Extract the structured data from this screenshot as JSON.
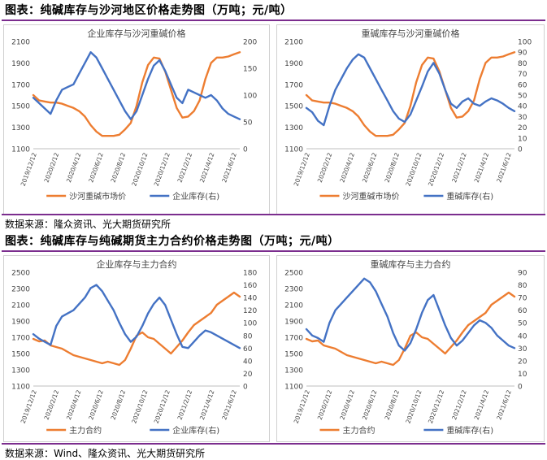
{
  "sections": [
    {
      "title": "图表：纯碱库存与沙河地区价格走势图（万吨；元/吨）",
      "source": "数据来源：隆众资讯、光大期货研究所"
    },
    {
      "title": "图表：纯碱库存与纯碱期货主力合约价格走势图（万吨；元/吨）",
      "source": "数据来源：Wind、隆众资讯、光大期货研究所"
    }
  ],
  "colors": {
    "orange": "#ED7D31",
    "blue": "#4472C4",
    "rule": "#7b2d8e"
  },
  "chart_data": [
    {
      "type": "line",
      "title": "企业库存与沙河重碱价格",
      "x_ticks": [
        "2019/12/12",
        "2020/2/12",
        "2020/4/12",
        "2020/6/12",
        "2020/8/12",
        "2020/10/12",
        "2020/12/12",
        "2021/2/12",
        "2021/4/12",
        "2021/6/12"
      ],
      "left_axis": {
        "min": 1100,
        "max": 2100,
        "ticks": [
          "1100",
          "1300",
          "1500",
          "1700",
          "1900",
          "2100"
        ]
      },
      "right_axis": {
        "min": 0,
        "max": 200,
        "ticks": [
          "0",
          "50",
          "100",
          "150",
          "200"
        ]
      },
      "series": [
        {
          "name": "沙河重碱市场价",
          "axis": "left",
          "color": "#ED7D31",
          "values": [
            1600,
            1550,
            1540,
            1530,
            1530,
            1520,
            1500,
            1480,
            1450,
            1400,
            1320,
            1260,
            1220,
            1220,
            1220,
            1230,
            1280,
            1340,
            1500,
            1720,
            1880,
            1950,
            1940,
            1820,
            1650,
            1480,
            1390,
            1400,
            1450,
            1550,
            1750,
            1900,
            1950,
            1950,
            1960,
            1980,
            2000
          ]
        },
        {
          "name": "企业库存(右)",
          "axis": "right",
          "color": "#4472C4",
          "values": [
            95,
            85,
            75,
            65,
            90,
            110,
            115,
            120,
            140,
            160,
            180,
            170,
            150,
            130,
            110,
            90,
            70,
            55,
            70,
            100,
            130,
            155,
            165,
            145,
            120,
            95,
            85,
            110,
            105,
            100,
            95,
            100,
            90,
            75,
            65,
            60,
            55
          ]
        }
      ]
    },
    {
      "type": "line",
      "title": "重碱库存与沙河重碱价格",
      "x_ticks": [
        "2019/12/12",
        "2020/2/12",
        "2020/4/12",
        "2020/6/12",
        "2020/8/12",
        "2020/10/12",
        "2020/12/12",
        "2021/2/12",
        "2021/4/12",
        "2021/6/12"
      ],
      "left_axis": {
        "min": 1100,
        "max": 2100,
        "ticks": [
          "1100",
          "1300",
          "1500",
          "1700",
          "1900",
          "2100"
        ]
      },
      "right_axis": {
        "min": 0,
        "max": 100,
        "ticks": [
          "0",
          "10",
          "20",
          "30",
          "40",
          "50",
          "60",
          "70",
          "80",
          "90",
          "100"
        ]
      },
      "series": [
        {
          "name": "沙河重碱市场价",
          "axis": "left",
          "color": "#ED7D31",
          "values": [
            1600,
            1550,
            1540,
            1530,
            1530,
            1520,
            1500,
            1480,
            1450,
            1400,
            1320,
            1260,
            1220,
            1220,
            1220,
            1230,
            1280,
            1340,
            1500,
            1720,
            1880,
            1950,
            1940,
            1820,
            1650,
            1480,
            1390,
            1400,
            1450,
            1550,
            1750,
            1900,
            1950,
            1950,
            1960,
            1980,
            2000
          ]
        },
        {
          "name": "重碱库存(右)",
          "axis": "right",
          "color": "#4472C4",
          "values": [
            38,
            34,
            26,
            22,
            40,
            55,
            65,
            75,
            83,
            88,
            85,
            75,
            65,
            55,
            45,
            35,
            28,
            25,
            32,
            45,
            58,
            72,
            80,
            70,
            55,
            42,
            38,
            44,
            47,
            42,
            40,
            44,
            47,
            45,
            42,
            38,
            35
          ]
        }
      ]
    },
    {
      "type": "line",
      "title": "企业库存与主力合约",
      "x_ticks": [
        "2019/12/12",
        "2020/2/12",
        "2020/4/12",
        "2020/6/12",
        "2020/8/12",
        "2020/10/12",
        "2020/12/12",
        "2021/2/12",
        "2021/4/12",
        "2021/6/12"
      ],
      "left_axis": {
        "min": 1100,
        "max": 2500,
        "ticks": [
          "1100",
          "1300",
          "1500",
          "1700",
          "1900",
          "2100",
          "2300",
          "2500"
        ]
      },
      "right_axis": {
        "min": 0,
        "max": 180,
        "ticks": [
          "0",
          "20",
          "40",
          "60",
          "80",
          "100",
          "120",
          "140",
          "160",
          "180"
        ]
      },
      "series": [
        {
          "name": "主力合约",
          "axis": "left",
          "color": "#ED7D31",
          "values": [
            1680,
            1650,
            1660,
            1600,
            1580,
            1560,
            1520,
            1480,
            1460,
            1440,
            1420,
            1400,
            1380,
            1400,
            1380,
            1360,
            1420,
            1560,
            1720,
            1760,
            1700,
            1680,
            1620,
            1560,
            1500,
            1580,
            1660,
            1760,
            1850,
            1900,
            1950,
            2000,
            2100,
            2150,
            2200,
            2250,
            2200
          ]
        },
        {
          "name": "企业库存(右)",
          "axis": "right",
          "color": "#4472C4",
          "values": [
            82,
            75,
            70,
            65,
            95,
            110,
            115,
            120,
            130,
            140,
            155,
            160,
            150,
            135,
            120,
            100,
            82,
            70,
            78,
            95,
            115,
            130,
            140,
            128,
            105,
            82,
            62,
            60,
            70,
            80,
            88,
            85,
            80,
            75,
            70,
            65,
            60
          ]
        }
      ]
    },
    {
      "type": "line",
      "title": "重碱库存与主力合约",
      "x_ticks": [
        "2019/12/12",
        "2020/2/12",
        "2020/4/12",
        "2020/6/12",
        "2020/8/12",
        "2020/10/12",
        "2020/12/12",
        "2021/2/12",
        "2021/4/12",
        "2021/6/12"
      ],
      "left_axis": {
        "min": 1100,
        "max": 2500,
        "ticks": [
          "1100",
          "1300",
          "1500",
          "1700",
          "1900",
          "2100",
          "2300",
          "2500"
        ]
      },
      "right_axis": {
        "min": 0,
        "max": 90,
        "ticks": [
          "0",
          "10",
          "20",
          "30",
          "40",
          "50",
          "60",
          "70",
          "80",
          "90"
        ]
      },
      "series": [
        {
          "name": "主力合约",
          "axis": "left",
          "color": "#ED7D31",
          "values": [
            1680,
            1650,
            1660,
            1600,
            1580,
            1560,
            1520,
            1480,
            1460,
            1440,
            1420,
            1400,
            1380,
            1400,
            1380,
            1360,
            1420,
            1560,
            1720,
            1760,
            1700,
            1680,
            1620,
            1560,
            1500,
            1580,
            1660,
            1760,
            1850,
            1900,
            1950,
            2000,
            2100,
            2150,
            2200,
            2250,
            2200
          ]
        },
        {
          "name": "重碱库存(右)",
          "axis": "right",
          "color": "#4472C4",
          "values": [
            45,
            40,
            38,
            35,
            50,
            60,
            65,
            70,
            75,
            80,
            85,
            82,
            75,
            65,
            55,
            42,
            32,
            28,
            34,
            45,
            58,
            68,
            72,
            60,
            48,
            38,
            32,
            36,
            42,
            48,
            52,
            50,
            46,
            40,
            36,
            32,
            30
          ]
        }
      ]
    }
  ]
}
